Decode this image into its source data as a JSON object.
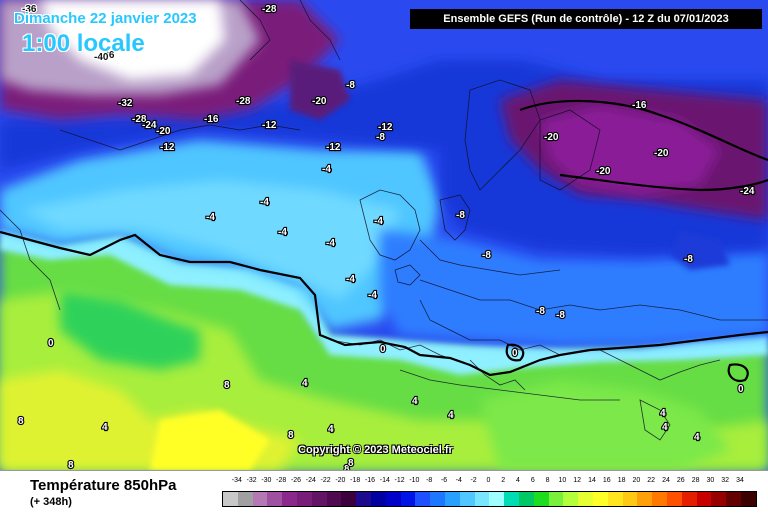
{
  "header": {
    "date": "Dimanche 22 janvier 2023",
    "time": "1:00 locale",
    "model": "Ensemble GEFS  (Run de contrôle)  -  12 Z du 07/01/2023"
  },
  "map": {
    "copyright": "Copyright © 2023 Meteociel.fr",
    "isotherm_labels": [
      {
        "text": "-36"
      },
      {
        "text": "-28"
      },
      {
        "text": "-36"
      },
      {
        "text": "-40"
      },
      {
        "text": "-32"
      },
      {
        "text": "-28"
      },
      {
        "text": "-24"
      },
      {
        "text": "-20"
      },
      {
        "text": "-28"
      },
      {
        "text": "-20"
      },
      {
        "text": "-8"
      },
      {
        "text": "-16"
      },
      {
        "text": "-12"
      },
      {
        "text": "-12"
      },
      {
        "text": "-12"
      },
      {
        "text": "-8"
      },
      {
        "text": "-12"
      },
      {
        "text": "-16"
      },
      {
        "text": "-20"
      },
      {
        "text": "-20"
      },
      {
        "text": "-20"
      },
      {
        "text": "-24"
      },
      {
        "text": "-4"
      },
      {
        "text": "-4"
      },
      {
        "text": "-4"
      },
      {
        "text": "-4"
      },
      {
        "text": "-4"
      },
      {
        "text": "-4"
      },
      {
        "text": "-8"
      },
      {
        "text": "-4"
      },
      {
        "text": "-4"
      },
      {
        "text": "-8"
      },
      {
        "text": "-8"
      },
      {
        "text": "-8"
      },
      {
        "text": "-8"
      },
      {
        "text": "0"
      },
      {
        "text": "0"
      },
      {
        "text": "0"
      },
      {
        "text": "0"
      },
      {
        "text": "4"
      },
      {
        "text": "8"
      },
      {
        "text": "4"
      },
      {
        "text": "4"
      },
      {
        "text": "8"
      },
      {
        "text": "4"
      },
      {
        "text": "8"
      },
      {
        "text": "8"
      },
      {
        "text": "4"
      },
      {
        "text": "4"
      },
      {
        "text": "4"
      },
      {
        "text": "4"
      },
      {
        "text": "8"
      },
      {
        "text": "8"
      }
    ]
  },
  "footer": {
    "parameter": "Température 850hPa",
    "lead": "(+ 348h)"
  },
  "legend": {
    "ticks": [
      "-34",
      "-32",
      "-30",
      "-28",
      "-26",
      "-24",
      "-22",
      "-20",
      "-18",
      "-16",
      "-14",
      "-12",
      "-10",
      "-8",
      "-6",
      "-4",
      "-2",
      "0",
      "2",
      "4",
      "6",
      "8",
      "10",
      "12",
      "14",
      "16",
      "18",
      "20",
      "22",
      "24",
      "26",
      "28",
      "30",
      "32",
      "34"
    ],
    "colors": [
      "#c8c8c8",
      "#a0a0a0",
      "#b478b4",
      "#a050a0",
      "#8c288c",
      "#781e78",
      "#641464",
      "#500a50",
      "#3c003c",
      "#1e0a8c",
      "#0000a0",
      "#0000c8",
      "#0014e6",
      "#1e50ff",
      "#1e78ff",
      "#28a0ff",
      "#50c8ff",
      "#78e6ff",
      "#a0ffff",
      "#00dcb4",
      "#00c864",
      "#1edc1e",
      "#78f03c",
      "#b4ff3c",
      "#e6ff32",
      "#ffff28",
      "#ffe61e",
      "#ffc814",
      "#ffa00a",
      "#ff7800",
      "#ff5000",
      "#e61e00",
      "#c80000",
      "#960000",
      "#640000",
      "#3c0000"
    ]
  }
}
